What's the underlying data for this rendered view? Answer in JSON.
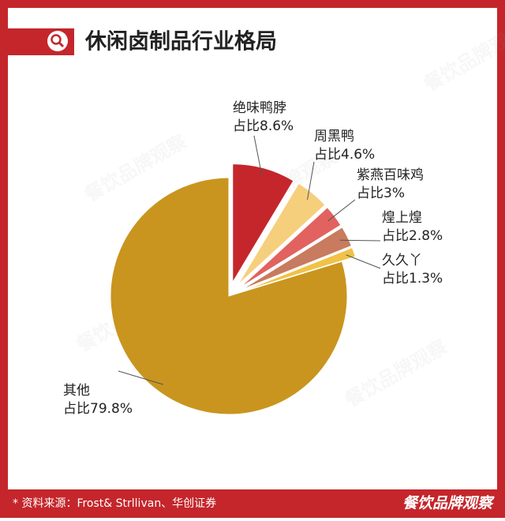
{
  "chart_data": {
    "type": "pie",
    "title": "休闲卤制品行业格局",
    "categories": [
      "绝味鸭脖",
      "周黑鸭",
      "紫燕百味鸡",
      "煌上煌",
      "久久丫",
      "其他"
    ],
    "values": [
      8.6,
      4.6,
      3,
      2.8,
      1.3,
      79.8
    ],
    "value_labels": [
      "占比8.6%",
      "占比4.6%",
      "占比3%",
      "占比2.8%",
      "占比1.3%",
      "占比79.8%"
    ],
    "colors": [
      "#c4262b",
      "#f6cf7d",
      "#e2625f",
      "#c87b5e",
      "#f0c246",
      "#c9951f"
    ],
    "source": "* 资料来源：Frost& Strllivan、华创证券",
    "watermark": "餐饮品牌观察"
  }
}
